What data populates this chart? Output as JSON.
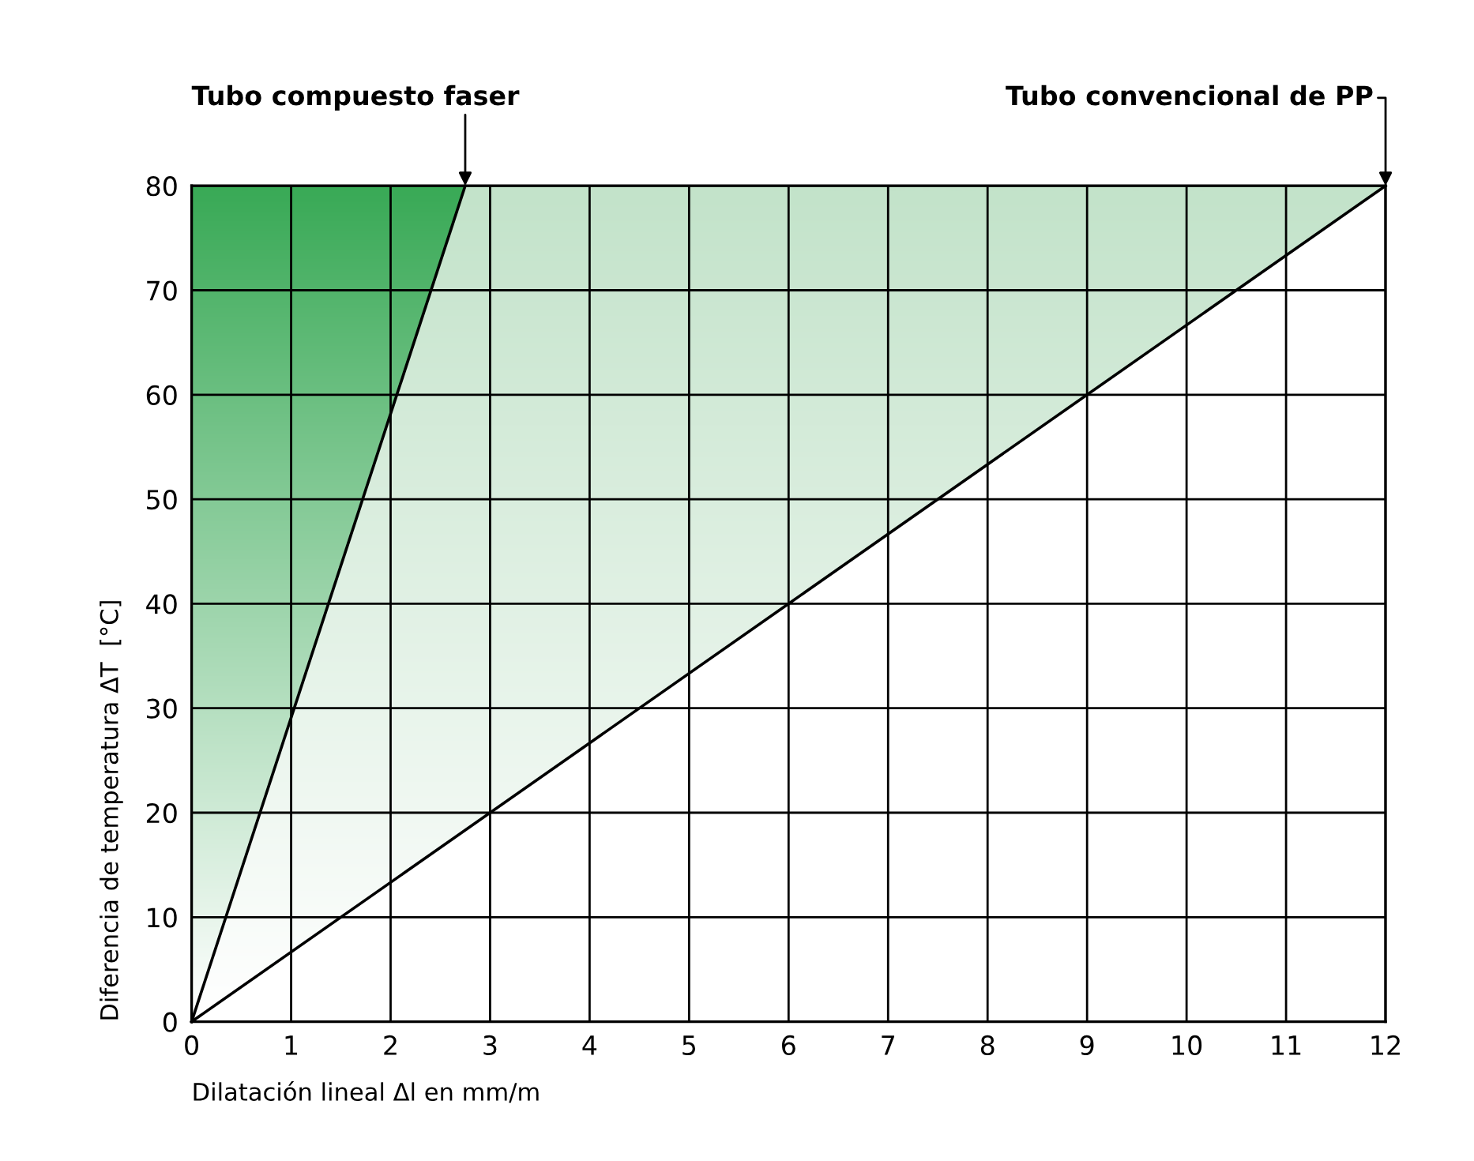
{
  "chart_data": {
    "type": "line",
    "xlabel": "Dilatación lineal Δl en mm/m",
    "ylabel": "Diferencia de temperatura ΔT  [°C]",
    "series": [
      {
        "name": "Tubo compuesto faser",
        "color": "#000000",
        "x": [
          0,
          2.75
        ],
        "values": [
          0,
          80
        ]
      },
      {
        "name": "Tubo convencional de PP",
        "color": "#000000",
        "x": [
          0,
          12
        ],
        "values": [
          0,
          80
        ]
      }
    ],
    "xlim": [
      0,
      12
    ],
    "ylim": [
      0,
      80
    ],
    "xticks": [
      0,
      1,
      2,
      3,
      4,
      5,
      6,
      7,
      8,
      9,
      10,
      11,
      12
    ],
    "yticks": [
      0,
      10,
      20,
      30,
      40,
      50,
      60,
      70,
      80
    ],
    "grid": true,
    "legend": false,
    "marker": "none",
    "line_style": "solid"
  }
}
